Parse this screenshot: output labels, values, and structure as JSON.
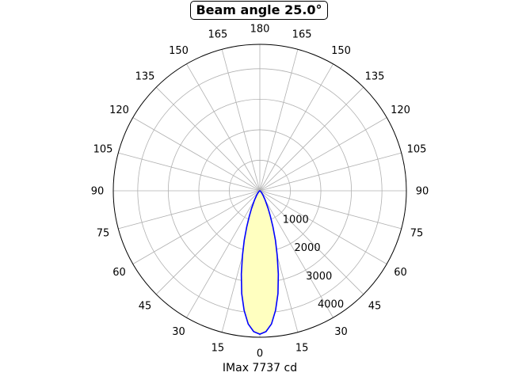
{
  "chart_data": {
    "type": "polar",
    "title": "Beam angle 25.0°",
    "xlabel": "IMax 7737 cd",
    "angle_tick_labels": [
      "0",
      "15",
      "30",
      "45",
      "60",
      "75",
      "90",
      "105",
      "120",
      "135",
      "150",
      "165",
      "180",
      "165",
      "150",
      "135",
      "120",
      "105",
      "90",
      "75",
      "60",
      "45",
      "30",
      "15"
    ],
    "radial_tick_labels": [
      "1000",
      "2000",
      "3000",
      "4000"
    ],
    "radial_max": 4800,
    "grid": true,
    "series": [
      {
        "color": "#0000ff",
        "fill": "#ffffc0",
        "angles_deg": [
          0,
          2.5,
          5,
          7.5,
          10,
          12.5,
          15,
          17.5,
          20,
          22.5,
          25,
          30,
          35,
          40,
          45,
          50,
          60,
          70,
          80,
          90
        ],
        "values": [
          4700,
          4620,
          4380,
          3950,
          3420,
          2800,
          2200,
          1700,
          1250,
          900,
          650,
          350,
          190,
          110,
          60,
          30,
          10,
          3,
          1,
          0
        ]
      }
    ]
  }
}
